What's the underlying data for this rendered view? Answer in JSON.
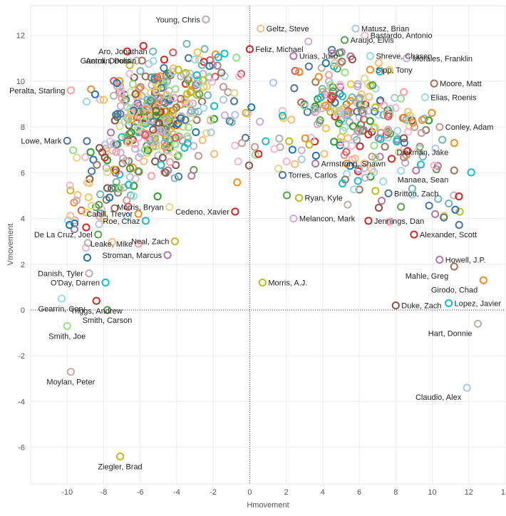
{
  "chart_data": {
    "type": "scatter",
    "xlabel": "Hmovement",
    "ylabel": "Vmovement",
    "xlim": [
      -12,
      14
    ],
    "ylim": [
      -7.6,
      13.3
    ],
    "x_ticks": [
      -10,
      -8,
      -6,
      -4,
      -2,
      0,
      2,
      4,
      6,
      8,
      10,
      12,
      14
    ],
    "y_ticks": [
      -6,
      -4,
      -2,
      0,
      2,
      4,
      6,
      8,
      10,
      12
    ],
    "grid": true,
    "zero_lines": true,
    "marker": "open-circle",
    "palette": [
      "#4e79a7",
      "#f28e2b",
      "#e15759",
      "#76b7b2",
      "#59a14f",
      "#edc948",
      "#b07aa1",
      "#ff9da7",
      "#9c755f",
      "#bab0ac",
      "#1f77b4",
      "#2ca02c",
      "#d62728",
      "#17becf",
      "#bcbd22",
      "#8c564b",
      "#aec7e8",
      "#ffbb78",
      "#98df8a",
      "#c5b0d5",
      "#c49c94",
      "#f7b6d2",
      "#dbdb8d",
      "#9edae5"
    ],
    "labeled_points": [
      {
        "name": "Young, Chris",
        "x": -2.4,
        "y": 12.7,
        "color": "#bab0ac"
      },
      {
        "name": "Geltz, Steve",
        "x": 0.6,
        "y": 12.3,
        "color": "#f2c48b"
      },
      {
        "name": "Aro, Jonathan",
        "x": -5.3,
        "y": 11.3,
        "color": "#76b7b2"
      },
      {
        "name": "Feliz, Michael",
        "x": 0.0,
        "y": 11.4,
        "color": "#d62728"
      },
      {
        "name": "Matusz, Brian",
        "x": 5.8,
        "y": 12.3,
        "color": "#aec7e8"
      },
      {
        "name": "Bastardo, Antonio",
        "x": 6.3,
        "y": 12.0,
        "color": "#f7b6d2"
      },
      {
        "name": "Araujo, Elvis",
        "x": 5.2,
        "y": 11.8,
        "color": "#59a14f"
      },
      {
        "name": "Shreve, Chasen",
        "x": 6.6,
        "y": 11.1,
        "color": "#9edae5"
      },
      {
        "name": "Guerra, Deolis",
        "x": -6.2,
        "y": 10.9,
        "color": "#bab0ac"
      },
      {
        "name": "Antolin, Dustin",
        "x": -5.9,
        "y": 10.9,
        "color": "#9c755f"
      },
      {
        "name": "Urias, Julio",
        "x": 2.4,
        "y": 11.1,
        "color": "#b07aa1"
      },
      {
        "name": "Morales, Franklin",
        "x": 8.6,
        "y": 11.0,
        "color": "#c5b0d5"
      },
      {
        "name": "Sipp, Tony",
        "x": 6.6,
        "y": 10.5,
        "color": "#f28e2b"
      },
      {
        "name": "Peralta, Starling",
        "x": -9.8,
        "y": 9.6,
        "color": "#ff9da7"
      },
      {
        "name": "Moore, Matt",
        "x": 10.1,
        "y": 9.9,
        "color": "#9c755f"
      },
      {
        "name": "Elias, Roenis",
        "x": 9.6,
        "y": 9.3,
        "color": "#9edae5"
      },
      {
        "name": "Lowe, Mark",
        "x": -10.0,
        "y": 7.4,
        "color": "#4e79a7"
      },
      {
        "name": "Conley, Adam",
        "x": 10.4,
        "y": 8.0,
        "color": "#c49c94"
      },
      {
        "name": "Diekman, Jake",
        "x": 11.2,
        "y": 7.3,
        "color": "#f28e2b"
      },
      {
        "name": "Armstrong, Shawn",
        "x": 3.6,
        "y": 6.4,
        "color": "#b07aa1"
      },
      {
        "name": "Manaea, Sean",
        "x": 11.2,
        "y": 6.1,
        "color": "#9c755f"
      },
      {
        "name": "Torres, Carlos",
        "x": 1.8,
        "y": 5.9,
        "color": "#4e79a7"
      },
      {
        "name": "Ryan, Kyle",
        "x": 2.7,
        "y": 4.9,
        "color": "#bcbd22"
      },
      {
        "name": "Morris, Bryan",
        "x": -4.4,
        "y": 4.5,
        "color": "#dbdb8d"
      },
      {
        "name": "Cahill, Trevor",
        "x": -6.1,
        "y": 4.2,
        "color": "#f28e2b"
      },
      {
        "name": "Britton, Zach",
        "x": 7.6,
        "y": 5.1,
        "color": "#4e79a7"
      },
      {
        "name": "Roe, Chaz",
        "x": -5.7,
        "y": 3.9,
        "color": "#17becf"
      },
      {
        "name": "Cedeno, Xavier",
        "x": -0.8,
        "y": 4.3,
        "color": "#d62728"
      },
      {
        "name": "Melancon, Mark",
        "x": 2.4,
        "y": 4.0,
        "color": "#c5b0d5"
      },
      {
        "name": "Jennings, Dan",
        "x": 6.5,
        "y": 3.9,
        "color": "#d62728"
      },
      {
        "name": "De La Cruz, Joel",
        "x": -8.3,
        "y": 3.3,
        "color": "#59a14f"
      },
      {
        "name": "Neal, Zach",
        "x": -4.1,
        "y": 3.0,
        "color": "#bcbd22"
      },
      {
        "name": "Alexander, Scott",
        "x": 9.0,
        "y": 3.3,
        "color": "#d62728"
      },
      {
        "name": "Leake, Mike",
        "x": -6.1,
        "y": 2.9,
        "color": "#ff9da7"
      },
      {
        "name": "Stroman, Marcus",
        "x": -4.5,
        "y": 2.4,
        "color": "#b07aa1"
      },
      {
        "name": "Howell, J.P.",
        "x": 10.4,
        "y": 2.2,
        "color": "#b07aa1"
      },
      {
        "name": "Mahle, Greg",
        "x": 11.2,
        "y": 1.9,
        "color": "#9c755f"
      },
      {
        "name": "Danish, Tyler",
        "x": -8.8,
        "y": 1.6,
        "color": "#bab0ac"
      },
      {
        "name": "Girodo, Chad",
        "x": 12.8,
        "y": 1.3,
        "color": "#f28e2b"
      },
      {
        "name": "O'Day, Darren",
        "x": -7.9,
        "y": 1.2,
        "color": "#17becf"
      },
      {
        "name": "Morris, A.J.",
        "x": 0.7,
        "y": 1.2,
        "color": "#bcbd22"
      },
      {
        "name": "Triggs, Andrew",
        "x": -8.4,
        "y": 0.4,
        "color": "#d62728"
      },
      {
        "name": "Gearrin, Cory",
        "x": -10.3,
        "y": 0.5,
        "color": "#9edae5"
      },
      {
        "name": "Duke, Zach",
        "x": 8.0,
        "y": 0.2,
        "color": "#8c564b"
      },
      {
        "name": "Lopez, Javier",
        "x": 10.9,
        "y": 0.3,
        "color": "#17becf"
      },
      {
        "name": "Smith, Carson",
        "x": -7.8,
        "y": 0.0,
        "color": "#59a14f"
      },
      {
        "name": "Smith, Joe",
        "x": -10.0,
        "y": -0.7,
        "color": "#98df8a"
      },
      {
        "name": "Hart, Donnie",
        "x": 12.5,
        "y": -0.6,
        "color": "#bab0ac"
      },
      {
        "name": "Moylan, Peter",
        "x": -9.8,
        "y": -2.7,
        "color": "#bab0ac"
      },
      {
        "name": "Claudio, Alex",
        "x": 11.9,
        "y": -3.4,
        "color": "#aec7e8"
      },
      {
        "name": "Ziegler, Brad",
        "x": -7.1,
        "y": -6.4,
        "color": "#bcbd22"
      }
    ],
    "clusters": [
      {
        "cx": -5.2,
        "cy": 8.4,
        "sx": 1.7,
        "sy": 1.6,
        "n": 330
      },
      {
        "cx": -7.6,
        "cy": 6.0,
        "sx": 1.2,
        "sy": 1.2,
        "n": 50
      },
      {
        "cx": -8.7,
        "cy": 4.0,
        "sx": 1.1,
        "sy": 1.2,
        "n": 28
      },
      {
        "cx": -3.0,
        "cy": 10.4,
        "sx": 1.2,
        "sy": 0.9,
        "n": 40
      },
      {
        "cx": 5.8,
        "cy": 8.7,
        "sx": 1.9,
        "sy": 1.5,
        "n": 135
      },
      {
        "cx": 8.8,
        "cy": 7.4,
        "sx": 1.4,
        "sy": 1.3,
        "n": 45
      },
      {
        "cx": 4.0,
        "cy": 9.8,
        "sx": 1.5,
        "sy": 1.3,
        "n": 40
      },
      {
        "cx": 6.5,
        "cy": 5.5,
        "sx": 1.4,
        "sy": 1.2,
        "n": 28
      },
      {
        "cx": 10.6,
        "cy": 4.8,
        "sx": 1.0,
        "sy": 1.3,
        "n": 14
      },
      {
        "cx": -0.8,
        "cy": 8.5,
        "sx": 1.0,
        "sy": 2.0,
        "n": 30
      },
      {
        "cx": 1.8,
        "cy": 7.0,
        "sx": 1.2,
        "sy": 1.3,
        "n": 16
      }
    ]
  }
}
